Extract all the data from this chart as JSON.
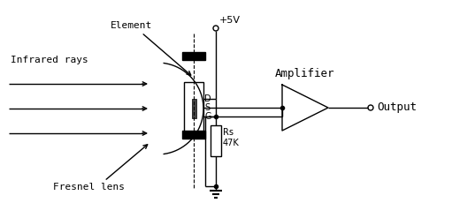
{
  "bg_color": "#ffffff",
  "line_color": "#000000",
  "text_color": "#000000",
  "figsize": [
    5.11,
    2.47
  ],
  "dpi": 100,
  "labels": {
    "infrared_rays": "Infrared rays",
    "element": "Element",
    "fresnel_lens": "Fresnel lens",
    "amplifier": "Amplifier",
    "output": "Output",
    "plus5v": "+5V",
    "D": "D",
    "S": "S",
    "G": "G",
    "Rs": "Rs",
    "47K": "47K"
  }
}
